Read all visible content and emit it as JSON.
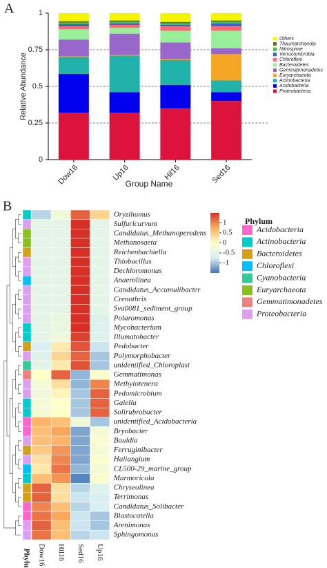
{
  "chart_data": [
    {
      "type": "stacked_bar",
      "panel_label": "A",
      "y_label": "Relative Abundance",
      "x_label": "Group Name",
      "categories": [
        "Dow16",
        "Up16",
        "Hil16",
        "Sed16"
      ],
      "ylim": [
        0,
        1
      ],
      "yticks": [
        0,
        0.25,
        0.5,
        0.75,
        1
      ],
      "grid": "dashed",
      "series": [
        {
          "name": "Proteobacteria",
          "color": "#dc143c",
          "values": [
            0.32,
            0.32,
            0.35,
            0.4
          ]
        },
        {
          "name": "Acidobacteria",
          "color": "#0000ee",
          "values": [
            0.265,
            0.14,
            0.16,
            0.06
          ]
        },
        {
          "name": "Actinobacteria",
          "color": "#20b2aa",
          "values": [
            0.115,
            0.25,
            0.17,
            0.08
          ]
        },
        {
          "name": "Euryarchaeota",
          "color": "#f5a623",
          "values": [
            0.005,
            0.005,
            0.005,
            0.18
          ]
        },
        {
          "name": "Gemmatimonadetes",
          "color": "#9966cc",
          "values": [
            0.115,
            0.145,
            0.115,
            0.04
          ]
        },
        {
          "name": "Bacteroidetes",
          "color": "#99ee99",
          "values": [
            0.07,
            0.04,
            0.08,
            0.12
          ]
        },
        {
          "name": "Chloroflexi",
          "color": "#ff6677",
          "values": [
            0.02,
            0.02,
            0.03,
            0.03
          ]
        },
        {
          "name": "Verrucomicrobia",
          "color": "#3366cc",
          "values": [
            0.015,
            0.01,
            0.01,
            0.02
          ]
        },
        {
          "name": "Nitrospirae",
          "color": "#33cc33",
          "values": [
            0.01,
            0.01,
            0.01,
            0.01
          ]
        },
        {
          "name": "Thaumarchaeota",
          "color": "#6b6b1f",
          "values": [
            0.01,
            0.01,
            0.01,
            0.01
          ]
        },
        {
          "name": "Others",
          "color": "#f5f500",
          "values": [
            0.055,
            0.05,
            0.06,
            0.05
          ]
        }
      ]
    },
    {
      "type": "heatmap",
      "panel_label": "B",
      "columns": [
        "Dow16",
        "Hil16",
        "Sed16",
        "Up16"
      ],
      "annotation_label": "Phylum",
      "rows": [
        "Oryzihumus",
        "Sulfuricurvum",
        "Candidatus_Methanoperedens",
        "Methanosaeta",
        "Reichenbachiella",
        "Thiobacillus",
        "Dechloromonas",
        "Anaerolinea",
        "Candidatus_Accumulibacter",
        "Crenothrix",
        "Sva0081_sediment_group",
        "Polaromonas",
        "Mycobacterium",
        "Illumatobacter",
        "Pedobacter",
        "Polymorphobacter",
        "unidentified_Chloroplast",
        "Gemmatimonas",
        "Methylotenera",
        "Pedomicrobium",
        "Gaiella",
        "Solirubrobacter",
        "unidentified_Acidobacteria",
        "Bryobacter",
        "Bauldia",
        "Ferruginibacter",
        "Haliangium",
        "CL500-29_marine_group",
        "Marmoricola",
        "Chryseolinea",
        "Terrimonas",
        "Candidatus_Solibacter",
        "Blastocatella",
        "Arenimonas",
        "Sphingomonas"
      ],
      "row_phylum": [
        "Actinobacteria",
        "Proteobacteria",
        "Euryarchaeota",
        "Euryarchaeota",
        "Bacteroidetes",
        "Proteobacteria",
        "Proteobacteria",
        "Chloroflexi",
        "Proteobacteria",
        "Proteobacteria",
        "Proteobacteria",
        "Proteobacteria",
        "Actinobacteria",
        "Actinobacteria",
        "Bacteroidetes",
        "Proteobacteria",
        "Cyanobacteria",
        "Gemmatimonadetes",
        "Proteobacteria",
        "Proteobacteria",
        "Actinobacteria",
        "Actinobacteria",
        "Acidobacteria",
        "Acidobacteria",
        "Proteobacteria",
        "Bacteroidetes",
        "Proteobacteria",
        "Chloroflexi",
        "Actinobacteria",
        "Bacteroidetes",
        "Bacteroidetes",
        "Acidobacteria",
        "Acidobacteria",
        "Proteobacteria",
        "Proteobacteria"
      ],
      "values": [
        [
          -0.9,
          -0.3,
          1.2,
          0.4
        ],
        [
          -0.5,
          -0.5,
          1.5,
          -0.5
        ],
        [
          -0.5,
          -0.5,
          1.5,
          -0.5
        ],
        [
          -0.5,
          -0.5,
          1.5,
          -0.5
        ],
        [
          -0.5,
          -0.5,
          1.5,
          -0.5
        ],
        [
          -0.5,
          -0.5,
          1.5,
          -0.5
        ],
        [
          -0.5,
          -0.5,
          1.5,
          -0.5
        ],
        [
          -0.5,
          -0.5,
          1.5,
          -0.5
        ],
        [
          -0.5,
          -0.5,
          1.5,
          -0.5
        ],
        [
          -0.5,
          -0.5,
          1.5,
          -0.5
        ],
        [
          -0.5,
          -0.5,
          1.5,
          -0.5
        ],
        [
          -0.5,
          -0.4,
          1.5,
          -0.6
        ],
        [
          -0.5,
          -0.4,
          1.5,
          -0.6
        ],
        [
          -0.5,
          -0.3,
          1.4,
          -0.6
        ],
        [
          -0.7,
          0.2,
          1.3,
          -0.8
        ],
        [
          -0.6,
          0.4,
          1.2,
          -1.0
        ],
        [
          -0.5,
          0.2,
          1.3,
          -1.0
        ],
        [
          0.0,
          1.2,
          -1.1,
          -0.1
        ],
        [
          -0.2,
          0.3,
          -1.1,
          1.0
        ],
        [
          -0.3,
          0.1,
          -1.0,
          1.2
        ],
        [
          -0.2,
          0.0,
          -1.0,
          1.2
        ],
        [
          -0.2,
          0.0,
          -1.0,
          1.2
        ],
        [
          0.7,
          0.6,
          -0.3,
          -1.0
        ],
        [
          0.6,
          0.8,
          -1.2,
          -0.2
        ],
        [
          0.6,
          0.7,
          -1.2,
          -0.1
        ],
        [
          0.5,
          0.9,
          -1.2,
          -0.2
        ],
        [
          0.3,
          1.0,
          -1.2,
          -0.1
        ],
        [
          0.2,
          1.1,
          -1.1,
          -0.2
        ],
        [
          0.6,
          0.9,
          -1.4,
          -0.1
        ],
        [
          1.2,
          0.3,
          -0.9,
          -0.6
        ],
        [
          1.2,
          0.3,
          -0.8,
          -0.7
        ],
        [
          1.0,
          0.6,
          -0.9,
          -0.7
        ],
        [
          1.1,
          0.8,
          -0.8,
          -1.0
        ],
        [
          1.2,
          0.6,
          -0.8,
          -1.0
        ],
        [
          1.1,
          0.6,
          -0.9,
          -0.8
        ]
      ],
      "clim": [
        -1.5,
        1.5
      ],
      "cticks": [
        1,
        0.5,
        0,
        -0.5,
        -1
      ],
      "colormap": [
        "#4575b4",
        "#d6eef5",
        "#ffffc8",
        "#fdae61",
        "#d73027"
      ],
      "legend_title": "Phylum",
      "phyla": [
        {
          "name": "Acidobacteria",
          "color": "#ff66cc"
        },
        {
          "name": "Actinobacteria",
          "color": "#00cccc"
        },
        {
          "name": "Bacteroidetes",
          "color": "#d4a017"
        },
        {
          "name": "Chloroflexi",
          "color": "#00bfff"
        },
        {
          "name": "Cyanobacteria",
          "color": "#33cc99"
        },
        {
          "name": "Euryarchaeota",
          "color": "#88c020"
        },
        {
          "name": "Gemmatimonadetes",
          "color": "#f08080"
        },
        {
          "name": "Proteobacteria",
          "color": "#dda0f0"
        }
      ]
    }
  ]
}
